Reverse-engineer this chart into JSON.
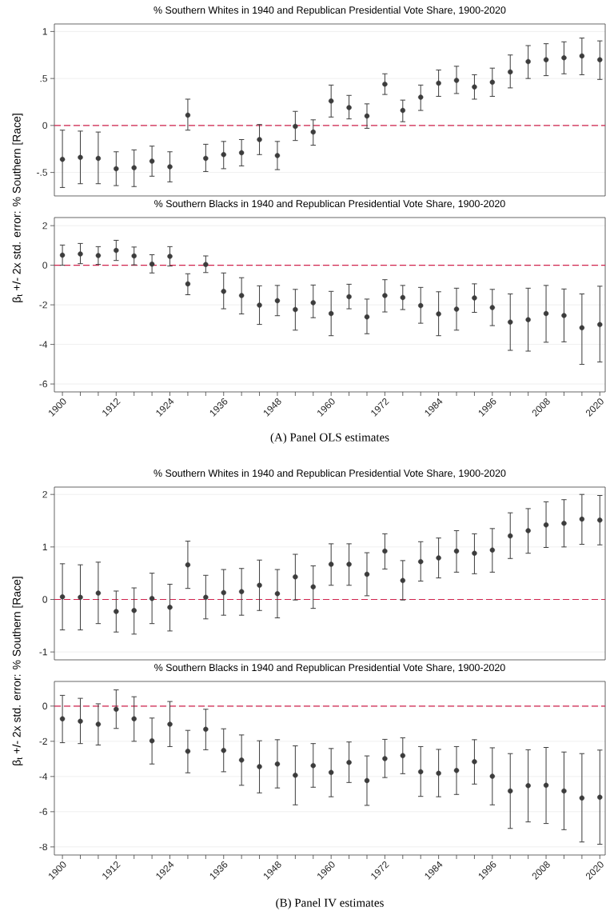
{
  "chart_data": [
    {
      "type": "scatter",
      "title": "% Southern Whites in 1940 and Republican Presidential Vote Share, 1900-2020",
      "ylabel": "β$_{t}$ +/- 2x std. error: % Southern [Race]",
      "color": "#3c3c3c",
      "marker": "circle",
      "grid": "y",
      "tick_labels": "y",
      "xlim": [
        1898.2,
        2021.2
      ],
      "ylim": [
        -0.75,
        1.08
      ],
      "yticks": [
        {
          "value": -0.5,
          "label": "-.5"
        },
        0,
        {
          "value": 0.5,
          "label": ".5"
        },
        1
      ],
      "ref_lines": [
        {
          "axis": "y",
          "value": 0,
          "color": "#d0234d",
          "line_style": "dashed"
        }
      ],
      "x": [
        1900,
        1904,
        1908,
        1912,
        1916,
        1920,
        1924,
        1928,
        1932,
        1936,
        1940,
        1944,
        1948,
        1952,
        1956,
        1960,
        1964,
        1968,
        1972,
        1976,
        1980,
        1984,
        1988,
        1992,
        1996,
        2000,
        2004,
        2008,
        2012,
        2016,
        2020
      ],
      "values": [
        -0.36,
        -0.34,
        -0.35,
        -0.46,
        -0.45,
        -0.38,
        -0.44,
        0.11,
        -0.35,
        -0.31,
        -0.29,
        -0.15,
        -0.32,
        -0.01,
        -0.07,
        0.26,
        0.19,
        0.1,
        0.44,
        0.16,
        0.3,
        0.45,
        0.48,
        0.41,
        0.46,
        0.57,
        0.68,
        0.7,
        0.72,
        0.74,
        0.7
      ],
      "errors": [
        [
          -0.66,
          -0.05
        ],
        [
          -0.62,
          -0.06
        ],
        [
          -0.62,
          -0.07
        ],
        [
          -0.64,
          -0.28
        ],
        [
          -0.65,
          -0.26
        ],
        [
          -0.54,
          -0.22
        ],
        [
          -0.6,
          -0.28
        ],
        [
          -0.05,
          0.28
        ],
        [
          -0.49,
          -0.2
        ],
        [
          -0.46,
          -0.17
        ],
        [
          -0.43,
          -0.15
        ],
        [
          -0.31,
          0.01
        ],
        [
          -0.47,
          -0.17
        ],
        [
          -0.16,
          0.15
        ],
        [
          -0.21,
          0.06
        ],
        [
          0.09,
          0.43
        ],
        [
          0.07,
          0.32
        ],
        [
          -0.03,
          0.23
        ],
        [
          0.33,
          0.55
        ],
        [
          0.04,
          0.27
        ],
        [
          0.16,
          0.43
        ],
        [
          0.31,
          0.59
        ],
        [
          0.34,
          0.63
        ],
        [
          0.28,
          0.54
        ],
        [
          0.31,
          0.61
        ],
        [
          0.4,
          0.75
        ],
        [
          0.5,
          0.85
        ],
        [
          0.53,
          0.87
        ],
        [
          0.55,
          0.89
        ],
        [
          0.54,
          0.93
        ],
        [
          0.49,
          0.9
        ]
      ]
    },
    {
      "type": "scatter",
      "title": "% Southern Blacks in 1940 and Republican Presidential Vote Share, 1900-2020",
      "annotations": [
        "(A) Panel OLS estimates"
      ],
      "color": "#3c3c3c",
      "marker": "circle",
      "grid": "y",
      "xlim": [
        1898.2,
        2021.2
      ],
      "ylim": [
        -6.4,
        2.41
      ],
      "xticks": [
        1900,
        {
          "value": 1904,
          "label": null
        },
        {
          "value": 1908,
          "label": null
        },
        1912,
        {
          "value": 1916,
          "label": null
        },
        {
          "value": 1920,
          "label": null
        },
        1924,
        {
          "value": 1928,
          "label": null
        },
        {
          "value": 1932,
          "label": null
        },
        1936,
        {
          "value": 1940,
          "label": null
        },
        {
          "value": 1944,
          "label": null
        },
        1948,
        {
          "value": 1952,
          "label": null
        },
        {
          "value": 1956,
          "label": null
        },
        1960,
        {
          "value": 1964,
          "label": null
        },
        {
          "value": 1968,
          "label": null
        },
        1972,
        {
          "value": 1976,
          "label": null
        },
        {
          "value": 1980,
          "label": null
        },
        1984,
        {
          "value": 1988,
          "label": null
        },
        {
          "value": 1992,
          "label": null
        },
        1996,
        {
          "value": 2000,
          "label": null
        },
        {
          "value": 2004,
          "label": null
        },
        2008,
        {
          "value": 2012,
          "label": null
        },
        {
          "value": 2016,
          "label": null
        },
        2020
      ],
      "yticks": [
        -6,
        -4,
        -2,
        0,
        2
      ],
      "ref_lines": [
        {
          "axis": "y",
          "value": 0,
          "color": "#d0234d",
          "line_style": "dashed"
        }
      ],
      "x": [
        1900,
        1904,
        1908,
        1912,
        1916,
        1920,
        1924,
        1928,
        1932,
        1936,
        1940,
        1944,
        1948,
        1952,
        1956,
        1960,
        1964,
        1968,
        1972,
        1976,
        1980,
        1984,
        1988,
        1992,
        1996,
        2000,
        2004,
        2008,
        2012,
        2016,
        2020
      ],
      "values": [
        0.51,
        0.57,
        0.49,
        0.75,
        0.47,
        0.06,
        0.45,
        -0.94,
        0.04,
        -1.32,
        -1.53,
        -2.02,
        -1.79,
        -2.24,
        -1.89,
        -2.44,
        -1.59,
        -2.61,
        -1.53,
        -1.63,
        -2.04,
        -2.46,
        -2.22,
        -1.65,
        -2.14,
        -2.87,
        -2.75,
        -2.44,
        -2.54,
        -3.16,
        -3.0
      ],
      "errors": [
        [
          0.0,
          1.02
        ],
        [
          0.08,
          1.1
        ],
        [
          0.04,
          0.94
        ],
        [
          0.24,
          1.26
        ],
        [
          0.02,
          0.92
        ],
        [
          -0.39,
          0.53
        ],
        [
          -0.04,
          0.94
        ],
        [
          -1.49,
          -0.43
        ],
        [
          -0.37,
          0.47
        ],
        [
          -2.2,
          -0.39
        ],
        [
          -2.46,
          -0.63
        ],
        [
          -2.99,
          -1.04
        ],
        [
          -2.55,
          -1.02
        ],
        [
          -3.28,
          -1.22
        ],
        [
          -2.65,
          -1.0
        ],
        [
          -3.56,
          -1.32
        ],
        [
          -2.2,
          -0.96
        ],
        [
          -3.46,
          -1.71
        ],
        [
          -2.36,
          -0.73
        ],
        [
          -2.24,
          -1.02
        ],
        [
          -2.93,
          -1.12
        ],
        [
          -3.56,
          -1.34
        ],
        [
          -3.28,
          -1.16
        ],
        [
          -2.38,
          -0.94
        ],
        [
          -3.05,
          -1.22
        ],
        [
          -4.3,
          -1.45
        ],
        [
          -4.34,
          -1.16
        ],
        [
          -3.89,
          -1.02
        ],
        [
          -3.87,
          -1.2
        ],
        [
          -5.01,
          -1.45
        ],
        [
          -4.89,
          -1.06
        ]
      ]
    },
    {
      "type": "scatter",
      "title": "% Southern Whites in 1940 and Republican Presidential Vote Share, 1900-2020",
      "ylabel": "β$_{t}$ +/- 2x std. error: % Southern [Race]",
      "color": "#3c3c3c",
      "marker": "circle",
      "grid": "y",
      "tick_labels": "y",
      "xlim": [
        1898.2,
        2021.2
      ],
      "ylim": [
        -1.15,
        2.14
      ],
      "yticks": [
        -1,
        0,
        1,
        2
      ],
      "ref_lines": [
        {
          "axis": "y",
          "value": 0,
          "color": "#d0234d",
          "line_style": "dashed"
        }
      ],
      "x": [
        1900,
        1904,
        1908,
        1912,
        1916,
        1920,
        1924,
        1928,
        1932,
        1936,
        1940,
        1944,
        1948,
        1952,
        1956,
        1960,
        1964,
        1968,
        1972,
        1976,
        1980,
        1984,
        1988,
        1992,
        1996,
        2000,
        2004,
        2008,
        2012,
        2016,
        2020
      ],
      "values": [
        0.05,
        0.04,
        0.12,
        -0.23,
        -0.21,
        0.02,
        -0.15,
        0.66,
        0.04,
        0.13,
        0.15,
        0.27,
        0.11,
        0.43,
        0.24,
        0.67,
        0.67,
        0.48,
        0.92,
        0.36,
        0.72,
        0.79,
        0.92,
        0.88,
        0.94,
        1.21,
        1.31,
        1.42,
        1.45,
        1.53,
        1.51
      ],
      "errors": [
        [
          -0.58,
          0.68
        ],
        [
          -0.58,
          0.66
        ],
        [
          -0.46,
          0.71
        ],
        [
          -0.62,
          0.16
        ],
        [
          -0.66,
          0.22
        ],
        [
          -0.46,
          0.5
        ],
        [
          -0.6,
          0.29
        ],
        [
          0.21,
          1.11
        ],
        [
          -0.37,
          0.46
        ],
        [
          -0.3,
          0.57
        ],
        [
          -0.3,
          0.59
        ],
        [
          -0.21,
          0.75
        ],
        [
          -0.35,
          0.57
        ],
        [
          -0.01,
          0.86
        ],
        [
          -0.17,
          0.64
        ],
        [
          0.27,
          1.06
        ],
        [
          0.27,
          1.06
        ],
        [
          0.07,
          0.89
        ],
        [
          0.58,
          1.25
        ],
        [
          -0.01,
          0.74
        ],
        [
          0.35,
          1.1
        ],
        [
          0.41,
          1.17
        ],
        [
          0.52,
          1.31
        ],
        [
          0.49,
          1.25
        ],
        [
          0.52,
          1.35
        ],
        [
          0.78,
          1.65
        ],
        [
          0.88,
          1.73
        ],
        [
          0.99,
          1.86
        ],
        [
          1.0,
          1.9
        ],
        [
          1.05,
          2.0
        ],
        [
          1.04,
          1.98
        ]
      ]
    },
    {
      "type": "scatter",
      "title": "% Southern Blacks in 1940 and Republican Presidential Vote Share, 1900-2020",
      "annotations": [
        "(B) Panel IV estimates"
      ],
      "color": "#3c3c3c",
      "marker": "circle",
      "grid": "y",
      "xlim": [
        1898.2,
        2021.2
      ],
      "ylim": [
        -8.46,
        1.4
      ],
      "xticks": [
        1900,
        {
          "value": 1904,
          "label": null
        },
        {
          "value": 1908,
          "label": null
        },
        1912,
        {
          "value": 1916,
          "label": null
        },
        {
          "value": 1920,
          "label": null
        },
        1924,
        {
          "value": 1928,
          "label": null
        },
        {
          "value": 1932,
          "label": null
        },
        1936,
        {
          "value": 1940,
          "label": null
        },
        {
          "value": 1944,
          "label": null
        },
        1948,
        {
          "value": 1952,
          "label": null
        },
        {
          "value": 1956,
          "label": null
        },
        1960,
        {
          "value": 1964,
          "label": null
        },
        {
          "value": 1968,
          "label": null
        },
        1972,
        {
          "value": 1976,
          "label": null
        },
        {
          "value": 1980,
          "label": null
        },
        1984,
        {
          "value": 1988,
          "label": null
        },
        {
          "value": 1992,
          "label": null
        },
        1996,
        {
          "value": 2000,
          "label": null
        },
        {
          "value": 2004,
          "label": null
        },
        2008,
        {
          "value": 2012,
          "label": null
        },
        {
          "value": 2016,
          "label": null
        },
        2020
      ],
      "yticks": [
        -8,
        -6,
        -4,
        -2,
        0
      ],
      "ref_lines": [
        {
          "axis": "y",
          "value": 0,
          "color": "#d0234d",
          "line_style": "dashed"
        }
      ],
      "x": [
        1900,
        1904,
        1908,
        1912,
        1916,
        1920,
        1924,
        1928,
        1932,
        1936,
        1940,
        1944,
        1948,
        1952,
        1956,
        1960,
        1964,
        1968,
        1972,
        1976,
        1980,
        1984,
        1988,
        1992,
        1996,
        2000,
        2004,
        2008,
        2012,
        2016,
        2020
      ],
      "values": [
        -0.72,
        -0.86,
        -1.03,
        -0.18,
        -0.72,
        -1.97,
        -1.03,
        -2.57,
        -1.32,
        -2.52,
        -3.07,
        -3.44,
        -3.29,
        -3.93,
        -3.38,
        -3.77,
        -3.2,
        -4.23,
        -2.98,
        -2.81,
        -3.73,
        -3.82,
        -3.66,
        -3.16,
        -3.99,
        -4.82,
        -4.52,
        -4.5,
        -4.82,
        -5.22,
        -5.18
      ],
      "errors": [
        [
          -2.08,
          0.61
        ],
        [
          -2.13,
          0.44
        ],
        [
          -2.21,
          0.13
        ],
        [
          -1.27,
          0.92
        ],
        [
          -2.0,
          0.53
        ],
        [
          -3.29,
          -0.68
        ],
        [
          -2.3,
          0.26
        ],
        [
          -3.79,
          -1.38
        ],
        [
          -2.48,
          -0.18
        ],
        [
          -3.73,
          -1.29
        ],
        [
          -4.5,
          -1.64
        ],
        [
          -4.93,
          -1.97
        ],
        [
          -4.65,
          -1.91
        ],
        [
          -5.61,
          -2.26
        ],
        [
          -4.61,
          -2.13
        ],
        [
          -5.15,
          -2.41
        ],
        [
          -4.34,
          -2.04
        ],
        [
          -5.64,
          -2.83
        ],
        [
          -4.06,
          -1.89
        ],
        [
          -3.84,
          -1.8
        ],
        [
          -5.13,
          -2.3
        ],
        [
          -5.15,
          -2.46
        ],
        [
          -5.02,
          -2.3
        ],
        [
          -4.43,
          -1.91
        ],
        [
          -5.61,
          -2.37
        ],
        [
          -6.95,
          -2.7
        ],
        [
          -6.58,
          -2.48
        ],
        [
          -6.67,
          -2.35
        ],
        [
          -7.02,
          -2.61
        ],
        [
          -7.72,
          -2.7
        ],
        [
          -7.85,
          -2.5
        ]
      ]
    }
  ]
}
